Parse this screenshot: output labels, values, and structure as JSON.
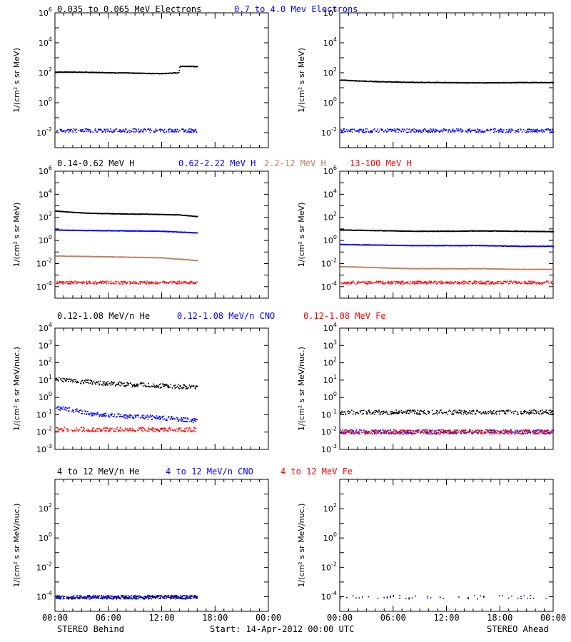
{
  "colors": {
    "black": "#000000",
    "blue": "#0000ff",
    "brown": "#c08060",
    "red": "#ff0000"
  },
  "rows": [
    {
      "titles": [
        {
          "text": "0.035 to 0.065 MeV Electrons",
          "color": "#000000"
        },
        {
          "text": "0.7 to 4.0 Mev Electrons",
          "color": "#0000ff"
        }
      ],
      "ylabel": "1/(cm² s sr MeV)"
    },
    {
      "titles": [
        {
          "text": "0.14-0.62 MeV H",
          "color": "#000000"
        },
        {
          "text": "0.62-2.22 MeV H",
          "color": "#0000ff"
        },
        {
          "text": "2.2-12 MeV H",
          "color": "#c08060"
        },
        {
          "text": "13-100 MeV H",
          "color": "#ff0000"
        }
      ],
      "ylabel": "1/(cm² s sr MeV)"
    },
    {
      "titles": [
        {
          "text": "0.12-1.08 MeV/n He",
          "color": "#000000"
        },
        {
          "text": "0.12-1.08 MeV/n CNO",
          "color": "#0000ff"
        },
        {
          "text": "0.12-1.08 MeV Fe",
          "color": "#ff0000"
        }
      ],
      "ylabel": "1/(cm² s sr MeV/nuc.)"
    },
    {
      "titles": [
        {
          "text": "4 to 12 MeV/n He",
          "color": "#000000"
        },
        {
          "text": "4 to 12 MeV/n CNO",
          "color": "#0000ff"
        },
        {
          "text": "4 to 12 MeV Fe",
          "color": "#ff0000"
        }
      ],
      "ylabel": "1/(cm² s sr MeV/nuc.)"
    }
  ],
  "footer": {
    "left": "STEREO Behind",
    "center": "Start: 14-Apr-2012 00:00 UTC",
    "right": "STEREO Ahead"
  },
  "x_tick_labels": [
    "00:00",
    "06:00",
    "12:00",
    "18:00",
    "00:00"
  ],
  "chart_data": [
    {
      "type": "scatter",
      "panel": "row1-behind",
      "xlabel_hours": [
        0,
        24
      ],
      "ylim_exp": [
        -3,
        6
      ],
      "yscale": "log",
      "yticks": [
        "10^-2",
        "10^0",
        "10^2",
        "10^4",
        "10^6"
      ],
      "series": [
        {
          "name": "0.035 to 0.065 MeV Electrons",
          "color": "#000000",
          "x": [
            0,
            2,
            4,
            6,
            8,
            10,
            12,
            13.9,
            14,
            16
          ],
          "y": [
            120.0,
            120.0,
            115.0,
            110.0,
            105.0,
            100.0,
            95.0,
            110.0,
            300.0,
            280.0
          ],
          "end_hour": 16
        },
        {
          "name": "0.7 to 4.0 Mev Electrons",
          "color": "#0000ff",
          "x": [
            0,
            16
          ],
          "y": [
            0.015,
            0.015
          ],
          "noisy": true,
          "end_hour": 16
        }
      ]
    },
    {
      "type": "scatter",
      "panel": "row1-ahead",
      "xlabel_hours": [
        0,
        24
      ],
      "ylim_exp": [
        -3,
        6
      ],
      "yscale": "log",
      "yticks": [
        "10^-2",
        "10^0",
        "10^2",
        "10^4",
        "10^6"
      ],
      "series": [
        {
          "name": "0.035 to 0.065 MeV Electrons",
          "color": "#000000",
          "x": [
            0,
            4,
            8,
            12,
            16,
            20,
            24
          ],
          "y": [
            35,
            28,
            25,
            24,
            23,
            24,
            24
          ],
          "end_hour": 24
        },
        {
          "name": "0.7 to 4.0 Mev Electrons",
          "color": "#0000ff",
          "x": [
            0,
            24
          ],
          "y": [
            0.015,
            0.015
          ],
          "noisy": true,
          "end_hour": 24
        }
      ]
    },
    {
      "type": "scatter",
      "panel": "row2-behind",
      "xlabel_hours": [
        0,
        24
      ],
      "ylim_exp": [
        -5,
        6
      ],
      "yscale": "log",
      "yticks": [
        "10^-4",
        "10^-2",
        "10^0",
        "10^2",
        "10^4",
        "10^6"
      ],
      "series": [
        {
          "name": "0.14-0.62 MeV H",
          "color": "#000000",
          "x": [
            0,
            2,
            4,
            8,
            12,
            14,
            16
          ],
          "y": [
            400.0,
            300.0,
            250.0,
            220.0,
            200.0,
            180.0,
            130.0
          ],
          "end_hour": 16
        },
        {
          "name": "0.62-2.22 MeV H",
          "color": "#0000ff",
          "x": [
            0,
            4,
            8,
            12,
            16
          ],
          "y": [
            9,
            8,
            7.5,
            7,
            5
          ],
          "end_hour": 16
        },
        {
          "name": "2.2-12 MeV H",
          "color": "#c08060",
          "x": [
            0,
            4,
            8,
            12,
            16
          ],
          "y": [
            0.05,
            0.045,
            0.04,
            0.035,
            0.02
          ],
          "end_hour": 16
        },
        {
          "name": "13-100 MeV H",
          "color": "#ff0000",
          "x": [
            0,
            16
          ],
          "y": [
            0.00025,
            0.00025
          ],
          "noisy": true,
          "end_hour": 16
        }
      ]
    },
    {
      "type": "scatter",
      "panel": "row2-ahead",
      "xlabel_hours": [
        0,
        24
      ],
      "ylim_exp": [
        -5,
        6
      ],
      "yscale": "log",
      "yticks": [
        "10^-4",
        "10^-2",
        "10^0",
        "10^2",
        "10^4",
        "10^6"
      ],
      "series": [
        {
          "name": "0.14-0.62 MeV H",
          "color": "#000000",
          "x": [
            0,
            4,
            8,
            12,
            16,
            20,
            24
          ],
          "y": [
            9,
            8,
            7,
            7,
            7.5,
            7,
            6.5
          ],
          "end_hour": 24
        },
        {
          "name": "0.62-2.22 MeV H",
          "color": "#0000ff",
          "x": [
            0,
            4,
            8,
            12,
            16,
            20,
            24
          ],
          "y": [
            0.5,
            0.45,
            0.4,
            0.4,
            0.4,
            0.35,
            0.35
          ],
          "end_hour": 24
        },
        {
          "name": "2.2-12 MeV H",
          "color": "#c08060",
          "x": [
            0,
            4,
            8,
            12,
            16,
            20,
            24
          ],
          "y": [
            0.006,
            0.005,
            0.004,
            0.004,
            0.004,
            0.0035,
            0.0035
          ],
          "end_hour": 24
        },
        {
          "name": "13-100 MeV H",
          "color": "#ff0000",
          "x": [
            0,
            24
          ],
          "y": [
            0.00025,
            0.00025
          ],
          "noisy": true,
          "end_hour": 24
        }
      ]
    },
    {
      "type": "scatter",
      "panel": "row3-behind",
      "xlabel_hours": [
        0,
        24
      ],
      "ylim_exp": [
        -3,
        4
      ],
      "yscale": "log",
      "yticks": [
        "10^-3",
        "10^-2",
        "10^-1",
        "10^0",
        "10^1",
        "10^2",
        "10^3",
        "10^4"
      ],
      "series": [
        {
          "name": "0.12-1.08 MeV/n He",
          "color": "#000000",
          "x": [
            0,
            2,
            4,
            8,
            12,
            16
          ],
          "y": [
            12,
            10,
            8,
            6,
            5,
            4
          ],
          "noisy": true,
          "end_hour": 16
        },
        {
          "name": "0.12-1.08 MeV/n CNO",
          "color": "#0000ff",
          "x": [
            0,
            2,
            4,
            8,
            12,
            16
          ],
          "y": [
            0.25,
            0.2,
            0.12,
            0.09,
            0.07,
            0.05
          ],
          "noisy": true,
          "end_hour": 16
        },
        {
          "name": "0.12-1.08 MeV Fe",
          "color": "#ff0000",
          "x": [
            0,
            16
          ],
          "y": [
            0.015,
            0.015
          ],
          "noisy": true,
          "end_hour": 16
        }
      ]
    },
    {
      "type": "scatter",
      "panel": "row3-ahead",
      "xlabel_hours": [
        0,
        24
      ],
      "ylim_exp": [
        -3,
        4
      ],
      "yscale": "log",
      "yticks": [
        "10^-3",
        "10^-2",
        "10^-1",
        "10^0",
        "10^1",
        "10^2",
        "10^3",
        "10^4"
      ],
      "series": [
        {
          "name": "0.12-1.08 MeV/n He",
          "color": "#000000",
          "x": [
            0,
            24
          ],
          "y": [
            0.15,
            0.15
          ],
          "noisy": true,
          "end_hour": 24
        },
        {
          "name": "0.12-1.08 MeV/n CNO",
          "color": "#0000ff",
          "x": [
            0,
            24
          ],
          "y": [
            0.011,
            0.011
          ],
          "noisy": true,
          "end_hour": 24
        },
        {
          "name": "0.12-1.08 MeV Fe",
          "color": "#ff0000",
          "x": [
            0,
            24
          ],
          "y": [
            0.011,
            0.011
          ],
          "noisy": true,
          "end_hour": 24
        }
      ]
    },
    {
      "type": "scatter",
      "panel": "row4-behind",
      "xlabel_hours": [
        0,
        24
      ],
      "ylim_exp": [
        -5,
        4
      ],
      "yscale": "log",
      "yticks": [
        "10^-4",
        "10^-2",
        "10^0",
        "10^2"
      ],
      "series": [
        {
          "name": "4 to 12 MeV/n He",
          "color": "#000000",
          "x": [
            0,
            16
          ],
          "y": [
            0.0001,
            0.0001
          ],
          "noisy": true,
          "end_hour": 16
        },
        {
          "name": "4 to 12 MeV/n CNO",
          "color": "#0000ff",
          "x": [
            0,
            16
          ],
          "y": [
            0.0001,
            0.0001
          ],
          "noisy": true,
          "end_hour": 16
        }
      ]
    },
    {
      "type": "scatter",
      "panel": "row4-ahead",
      "xlabel_hours": [
        0,
        24
      ],
      "ylim_exp": [
        -5,
        4
      ],
      "yscale": "log",
      "yticks": [
        "10^-4",
        "10^-2",
        "10^0",
        "10^2"
      ],
      "series": [
        {
          "name": "4 to 12 MeV/n He",
          "color": "#000000",
          "x": [
            0,
            24
          ],
          "y": [
            0.0001,
            0.0001
          ],
          "noisy": true,
          "sparse": true,
          "end_hour": 24
        },
        {
          "name": "4 to 12 MeV/n CNO",
          "color": "#0000ff",
          "x": [
            0,
            24
          ],
          "y": [
            0.0001,
            0.0001
          ],
          "noisy": true,
          "sparse": true,
          "end_hour": 24
        }
      ]
    }
  ]
}
